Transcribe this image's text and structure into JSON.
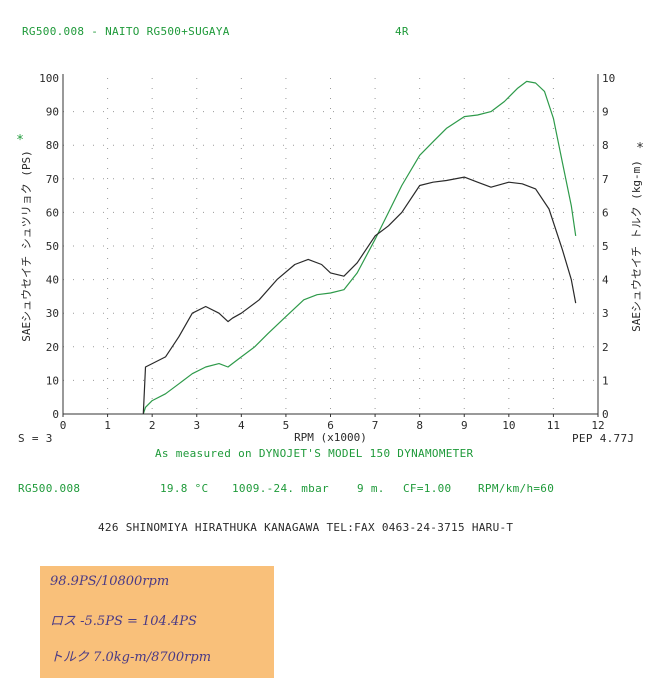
{
  "header": {
    "title": "RG500.008 - NAITO RG500+SUGAYA",
    "code": "4R"
  },
  "chart_data": {
    "type": "line",
    "xlabel": "RPM (x1000)",
    "ylabel_left": "SAEシュウセイチ シュツリョク (PS)",
    "ylabel_right": "SAEシュウセイチ トルク (kg-m)",
    "marker_left": "*",
    "marker_right": "*",
    "xlim": [
      0,
      12
    ],
    "ylim_left": [
      0,
      100
    ],
    "ylim_right": [
      0,
      10
    ],
    "x_ticks": [
      "0",
      "1",
      "2",
      "3",
      "4",
      "5",
      "6",
      "7",
      "8",
      "9",
      "10",
      "11",
      "12"
    ],
    "y_ticks_left": [
      "0",
      "10",
      "20",
      "30",
      "40",
      "50",
      "60",
      "70",
      "80",
      "90",
      "100"
    ],
    "y_ticks_right": [
      "0",
      "1",
      "2",
      "3",
      "4",
      "5",
      "6",
      "7",
      "8",
      "9",
      "10"
    ],
    "grid": "dotted",
    "series": [
      {
        "axis": "left",
        "color": "#2e9a4a",
        "x": [
          1.8,
          1.85,
          2.0,
          2.3,
          2.6,
          2.9,
          3.2,
          3.5,
          3.7,
          3.8,
          4.0,
          4.3,
          4.6,
          5.0,
          5.4,
          5.7,
          6.0,
          6.3,
          6.6,
          7.0,
          7.3,
          7.6,
          8.0,
          8.3,
          8.6,
          9.0,
          9.3,
          9.6,
          9.9,
          10.2,
          10.4,
          10.6,
          10.8,
          11.0,
          11.2,
          11.4,
          11.5
        ],
        "values": [
          0,
          2,
          4,
          6,
          9,
          12,
          14,
          15,
          14,
          15,
          17,
          20,
          24,
          29,
          34,
          35.5,
          36,
          37,
          42,
          52,
          60,
          68,
          77,
          81,
          85,
          88.5,
          89,
          90,
          93,
          97,
          99,
          98.5,
          96,
          88,
          75,
          62,
          53
        ]
      },
      {
        "axis": "right",
        "color": "#2a2a2a",
        "x": [
          1.8,
          1.85,
          2.0,
          2.3,
          2.6,
          2.9,
          3.2,
          3.5,
          3.7,
          3.8,
          4.0,
          4.4,
          4.8,
          5.2,
          5.5,
          5.8,
          6.0,
          6.3,
          6.6,
          7.0,
          7.3,
          7.6,
          8.0,
          8.3,
          8.6,
          9.0,
          9.3,
          9.6,
          10.0,
          10.3,
          10.6,
          10.9,
          11.2,
          11.4,
          11.5
        ],
        "values": [
          0,
          1.4,
          1.5,
          1.7,
          2.3,
          3.0,
          3.2,
          3.0,
          2.75,
          2.85,
          3.0,
          3.4,
          4.0,
          4.45,
          4.6,
          4.45,
          4.2,
          4.1,
          4.5,
          5.3,
          5.6,
          6.0,
          6.8,
          6.9,
          6.95,
          7.05,
          6.9,
          6.75,
          6.9,
          6.85,
          6.7,
          6.1,
          4.9,
          4.0,
          3.3
        ]
      }
    ]
  },
  "footer_left": "S = 3",
  "footer_right": "PEP 4.77J",
  "measure_note": "As measured on DYNOJET'S MODEL 150 DYNAMOMETER",
  "conditions": {
    "run": "RG500.008",
    "temp": "19.8 °C",
    "pressure": "1009.-24. mbar",
    "altitude": "9 m.",
    "cf": "CF=1.00",
    "unit": "RPM/km/h=60"
  },
  "address": "426  SHINOMIYA HIRATHUKA KANAGAWA TEL:FAX 0463-24-3715 HARU-T",
  "sticky_note": {
    "line1": "98.9PS/10800rpm",
    "line2": "ロス -5.5PS = 104.4PS",
    "line3": "トルク 7.0kg-m/8700rpm"
  }
}
